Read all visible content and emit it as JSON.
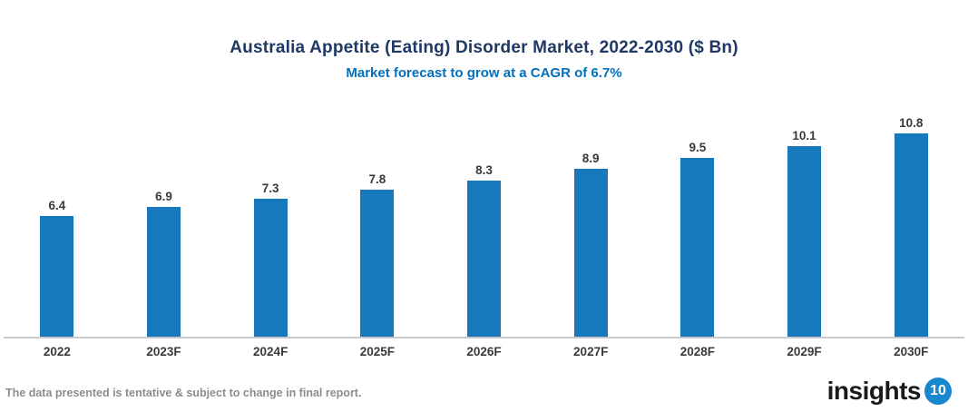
{
  "header": {
    "title": "Australia Appetite (Eating) Disorder Market, 2022-2030 ($ Bn)",
    "subtitle": "Market forecast to grow at a CAGR of 6.7%",
    "title_color": "#1F3864",
    "subtitle_color": "#0070C0"
  },
  "chart_data": {
    "type": "bar",
    "title": "Australia Appetite (Eating) Disorder Market, 2022-2030 ($ Bn)",
    "subtitle": "Market forecast to grow at a CAGR of 6.7%",
    "categories": [
      "2022",
      "2023F",
      "2024F",
      "2025F",
      "2026F",
      "2027F",
      "2028F",
      "2029F",
      "2030F"
    ],
    "values": [
      6.4,
      6.9,
      7.3,
      7.8,
      8.3,
      8.9,
      9.5,
      10.1,
      10.8
    ],
    "xlabel": "",
    "ylabel": "",
    "ylim": [
      0,
      11.8
    ],
    "grid": false,
    "legend": false,
    "data_labels_shown": true,
    "bar_color": "#1878BE",
    "value_label_color": "#3A3A3A",
    "tick_label_color": "#3A3A3A",
    "axis_line_color": "#C9C9C9"
  },
  "footer": {
    "disclaimer": "The data presented is tentative & subject to change in final report.",
    "logo_text": "insights",
    "logo_badge": "10",
    "logo_badge_color": "#1787CE"
  }
}
